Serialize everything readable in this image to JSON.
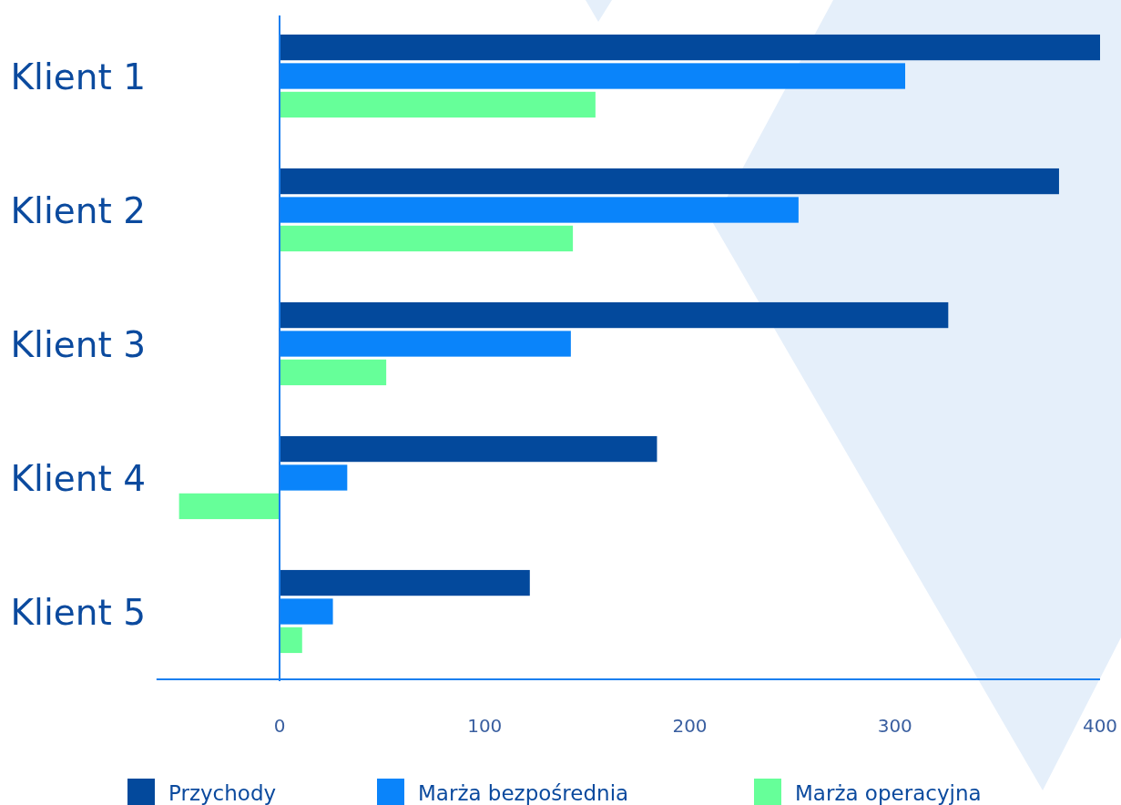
{
  "chart_data": {
    "type": "bar",
    "orientation": "horizontal",
    "categories": [
      "Klient 1",
      "Klient 2",
      "Klient 3",
      "Klient 4",
      "Klient 5"
    ],
    "series": [
      {
        "name": "Przychody",
        "color": "#03499c",
        "values": [
          400,
          380,
          326,
          184,
          122
        ]
      },
      {
        "name": "Marża bezpośrednia",
        "color": "#0a84fa",
        "values": [
          305,
          253,
          142,
          33,
          26
        ]
      },
      {
        "name": "Marża operacyjna",
        "color": "#66ff99",
        "values": [
          154,
          143,
          52,
          -49,
          11
        ]
      }
    ],
    "ref_lines": [
      {
        "axis": "x",
        "value": 0,
        "color": "#1a7ff0"
      }
    ],
    "xlim": [
      -60,
      400
    ],
    "xticks": [
      0,
      100,
      200,
      300,
      400
    ],
    "grid": false,
    "legend": "bottom"
  }
}
